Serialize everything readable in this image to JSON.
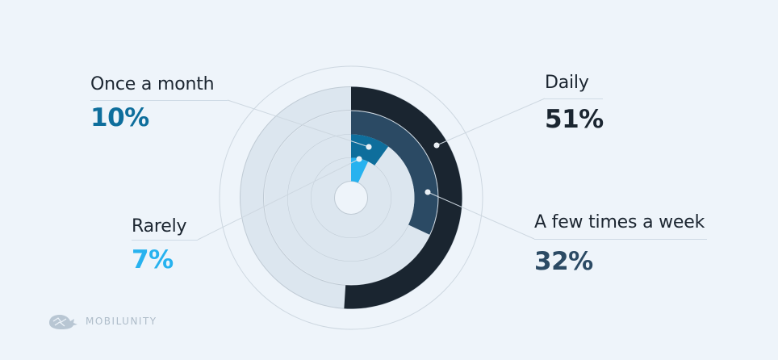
{
  "chart_data": {
    "type": "radial-bar",
    "series": [
      {
        "name": "Daily",
        "value": 51,
        "label": "51%",
        "color": "#1a2530"
      },
      {
        "name": "A few times a week",
        "value": 32,
        "label": "32%",
        "color": "#2b4a64"
      },
      {
        "name": "Once a month",
        "value": 10,
        "label": "10%",
        "color": "#0e6e9c"
      },
      {
        "name": "Rarely",
        "value": 7,
        "label": "7%",
        "color": "#27b2ef"
      }
    ],
    "track_color": "#dce6ef",
    "max": 100
  },
  "logo": {
    "text": "MOBILUNITY",
    "icon": "whale-icon",
    "color": "#aebcc9"
  }
}
